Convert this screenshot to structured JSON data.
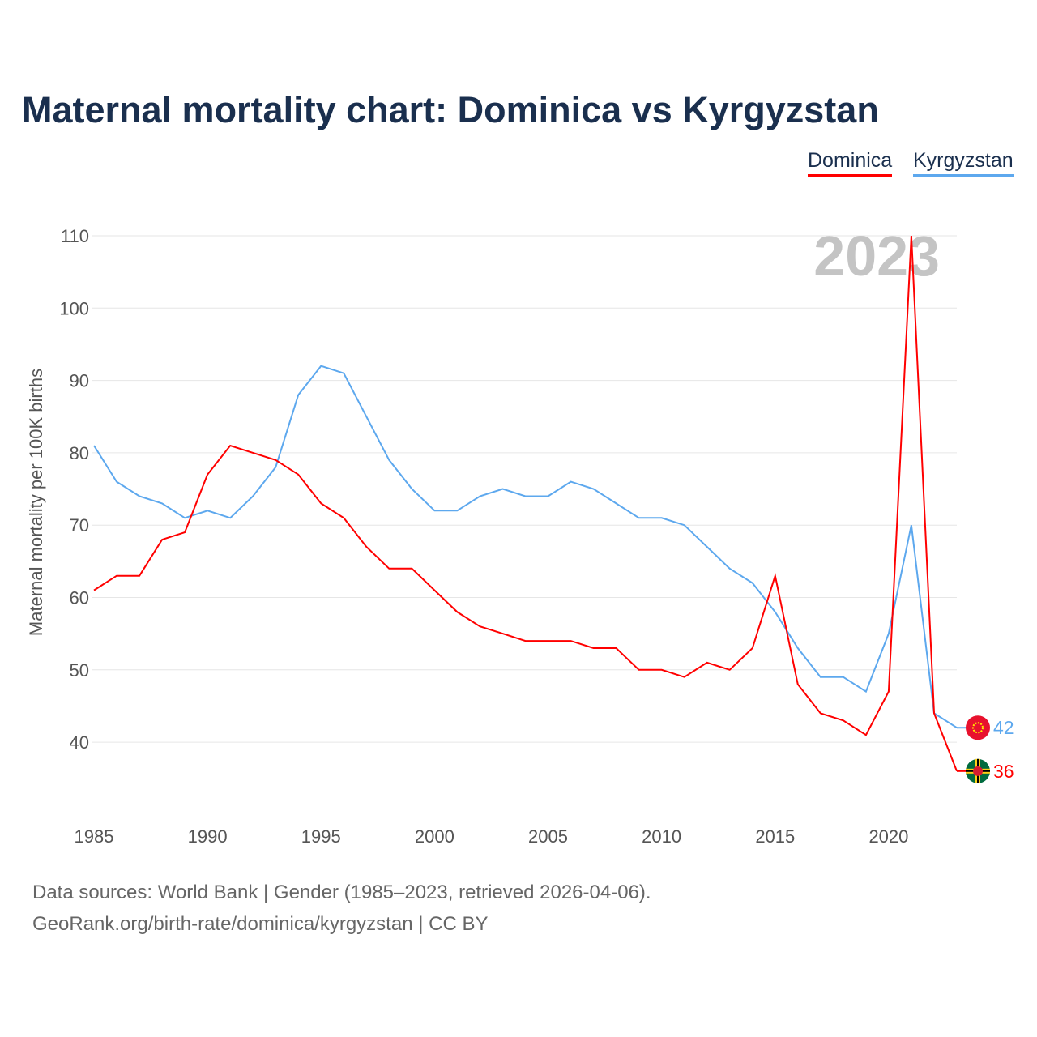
{
  "chart_data": {
    "type": "line",
    "title": "Maternal mortality chart: Dominica vs Kyrgyzstan",
    "xlabel": "",
    "ylabel": "Maternal mortality per 100K births",
    "year_label": "2023",
    "x": [
      1985,
      1986,
      1987,
      1988,
      1989,
      1990,
      1991,
      1992,
      1993,
      1994,
      1995,
      1996,
      1997,
      1998,
      1999,
      2000,
      2001,
      2002,
      2003,
      2004,
      2005,
      2006,
      2007,
      2008,
      2009,
      2010,
      2011,
      2012,
      2013,
      2014,
      2015,
      2016,
      2017,
      2018,
      2019,
      2020,
      2021,
      2022,
      2023
    ],
    "xticks": [
      "1985",
      "1990",
      "1995",
      "2000",
      "2005",
      "2010",
      "2015",
      "2020"
    ],
    "yticks": [
      "40",
      "50",
      "60",
      "70",
      "80",
      "90",
      "100",
      "110"
    ],
    "xlim": [
      1985,
      2023
    ],
    "ylim": [
      30,
      110
    ],
    "grid": true,
    "legend_position": "top-right",
    "series": [
      {
        "name": "Dominica",
        "color": "#ff0000",
        "end_label": "36",
        "values": [
          61,
          63,
          63,
          68,
          69,
          77,
          81,
          80,
          79,
          77,
          73,
          71,
          67,
          64,
          64,
          61,
          58,
          56,
          55,
          54,
          54,
          54,
          53,
          53,
          50,
          50,
          49,
          51,
          50,
          53,
          63,
          48,
          44,
          43,
          41,
          47,
          110,
          44,
          36
        ]
      },
      {
        "name": "Kyrgyzstan",
        "color": "#5da8ee",
        "end_label": "42",
        "values": [
          81,
          76,
          74,
          73,
          71,
          72,
          71,
          74,
          78,
          88,
          92,
          91,
          85,
          79,
          75,
          72,
          72,
          74,
          75,
          74,
          74,
          76,
          75,
          73,
          71,
          71,
          70,
          67,
          64,
          62,
          58,
          53,
          49,
          49,
          47,
          55,
          70,
          44,
          42
        ]
      }
    ]
  },
  "footer": {
    "line1": "Data sources: World Bank | Gender (1985–2023, retrieved 2026-04-06).",
    "line2": "GeoRank.org/birth-rate/dominica/kyrgyzstan | CC BY"
  }
}
